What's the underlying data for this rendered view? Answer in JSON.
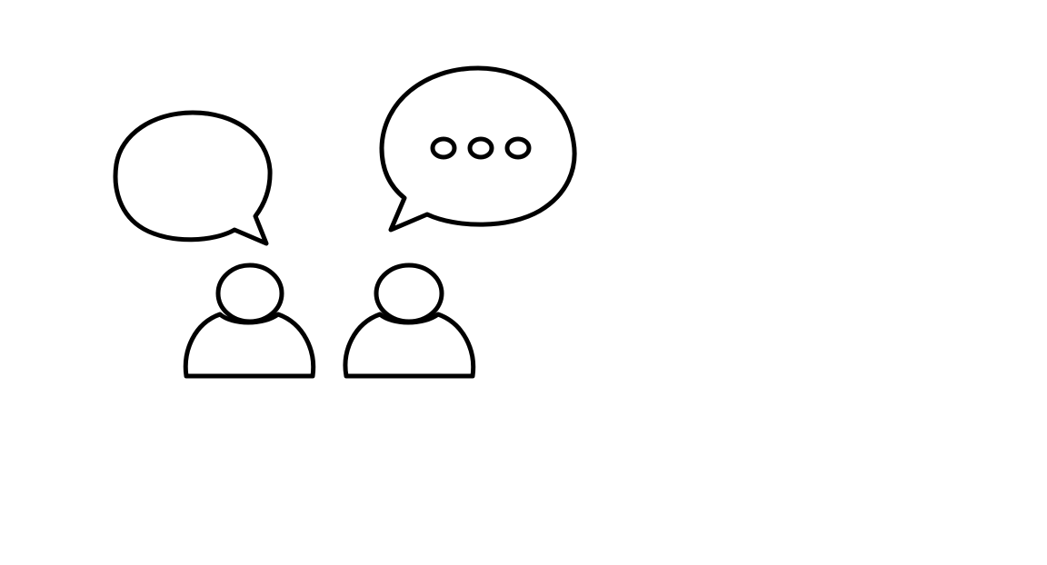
{
  "illustration": {
    "subject": "two-people-conversation-icon",
    "colors": {
      "stroke": "#000000",
      "fill": "#ffffff",
      "background": "#ffffff"
    },
    "left_person": {
      "icon": "person-icon",
      "speech_bubble": {
        "icon": "speech-bubble-icon",
        "content": "empty"
      }
    },
    "right_person": {
      "icon": "person-icon",
      "speech_bubble": {
        "icon": "speech-bubble-icon",
        "content": "typing-indicator",
        "typing_dot_count": 3
      }
    }
  }
}
